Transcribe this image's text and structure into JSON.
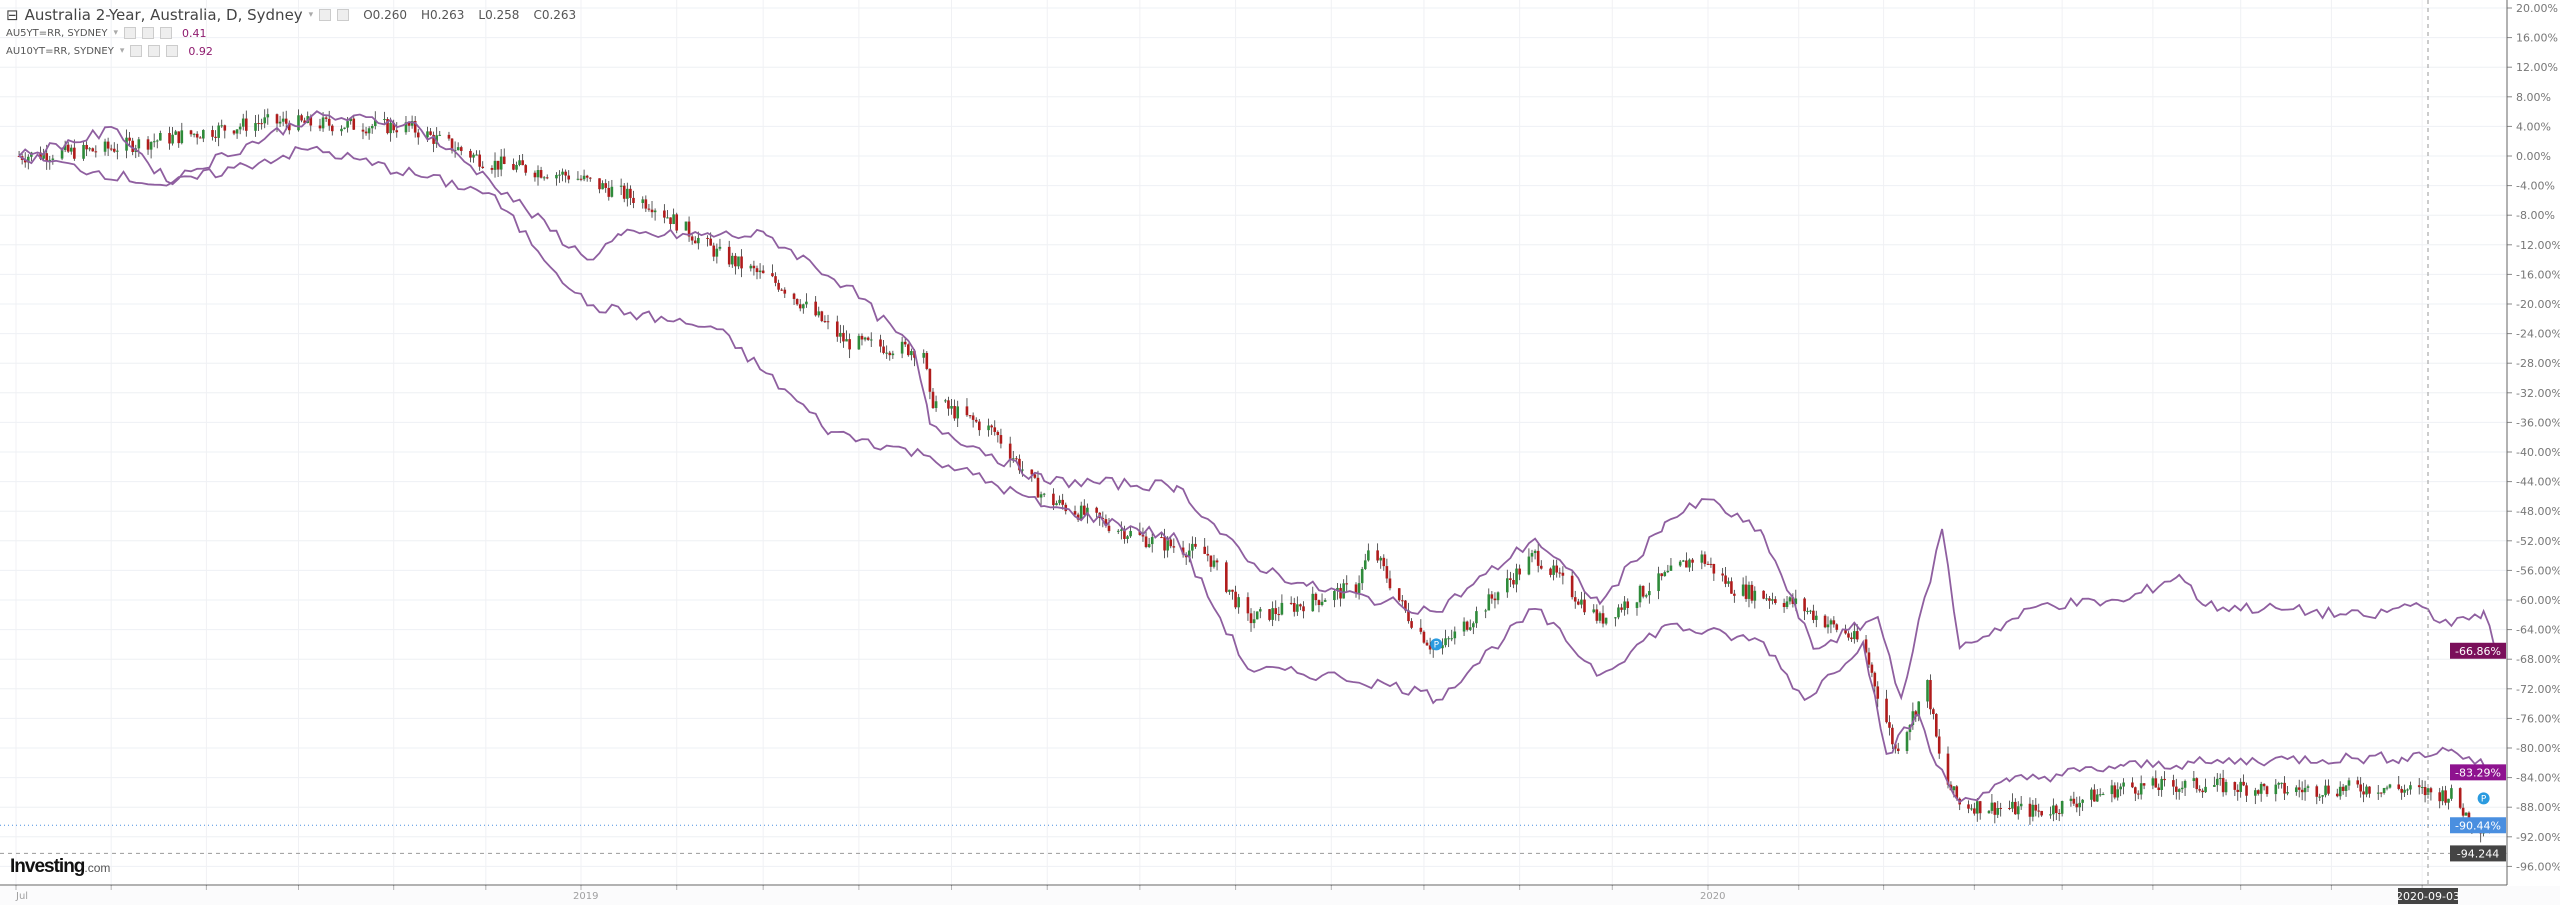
{
  "legend": {
    "main": {
      "title": "Australia 2-Year, Australia, D, Sydney",
      "open": "O0.260",
      "high": "H0.263",
      "low": "L0.258",
      "close": "C0.263"
    },
    "overlays": [
      {
        "label": "AU5YT=RR, SYDNEY",
        "value": "0.41"
      },
      {
        "label": "AU10YT=RR, SYDNEY",
        "value": "0.92"
      }
    ]
  },
  "logo": {
    "brand": "Investing",
    "suffix": ".com"
  },
  "colors": {
    "up": "#2e8b3a",
    "down": "#b01c1c",
    "au5": "#8f5fa0",
    "au10": "#8f5fa0",
    "badge10": "#7a0f5a",
    "badge5": "#8e138f",
    "badgeMain": "#4a8fe0",
    "crosshair": "#444444"
  },
  "chart_data": {
    "type": "line",
    "yaxis": {
      "min": -100,
      "max": 20,
      "step": 4,
      "unit": "%",
      "position": "right"
    },
    "xaxis": {
      "tick_labels": [
        "Jul",
        "2019",
        "2020"
      ],
      "tick_dates": [
        "2018-07-01",
        "2019-01-01",
        "2020-01-01"
      ]
    },
    "grid": true,
    "crosshair": {
      "date": "2020-09-03",
      "value": "-94.244",
      "value_num": -94.244
    },
    "last_value_labels": [
      "-66.86%",
      "-83.29%",
      "-90.44%"
    ],
    "series": [
      {
        "name": "Australia 2-Year",
        "style": "candlestick",
        "last": -90.44,
        "points": [
          [
            "2018-07-02",
            0
          ],
          [
            "2018-07-28",
            0.8
          ],
          [
            "2018-09-19",
            4.6
          ],
          [
            "2018-11-06",
            3.9
          ],
          [
            "2018-12-02",
            -0.9
          ],
          [
            "2018-12-29",
            -2.7
          ],
          [
            "2019-01-24",
            -6.5
          ],
          [
            "2019-02-14",
            -13.1
          ],
          [
            "2019-03-07",
            -17.5
          ],
          [
            "2019-03-28",
            -25.2
          ],
          [
            "2019-04-22",
            -26.3
          ],
          [
            "2019-04-24",
            -32.9
          ],
          [
            "2019-05-15",
            -37.3
          ],
          [
            "2019-05-31",
            -46.2
          ],
          [
            "2019-07-02",
            -51.7
          ],
          [
            "2019-07-23",
            -53.9
          ],
          [
            "2019-08-05",
            -62.7
          ],
          [
            "2019-09-09",
            -58.3
          ],
          [
            "2019-09-14",
            -52.8
          ],
          [
            "2019-09-25",
            -61.6
          ],
          [
            "2019-10-05",
            -67.1
          ],
          [
            "2019-10-16",
            -62.7
          ],
          [
            "2019-11-06",
            -53.9
          ],
          [
            "2019-11-27",
            -62.7
          ],
          [
            "2019-12-29",
            -53.9
          ],
          [
            "2020-01-09",
            -58.3
          ],
          [
            "2020-01-31",
            -60.5
          ],
          [
            "2020-02-23",
            -66
          ],
          [
            "2020-03-05",
            -80.3
          ],
          [
            "2020-03-16",
            -71.5
          ],
          [
            "2020-03-21",
            -83.6
          ],
          [
            "2020-03-27",
            -87.6
          ],
          [
            "2020-04-24",
            -88.6
          ],
          [
            "2020-05-22",
            -85.3
          ],
          [
            "2020-06-19",
            -85.0
          ],
          [
            "2020-07-17",
            -85.7
          ],
          [
            "2020-08-19",
            -85.3
          ],
          [
            "2020-09-11",
            -86.4
          ],
          [
            "2020-09-19",
            -90.6
          ],
          [
            "2020-09-26",
            -90.44
          ]
        ]
      },
      {
        "name": "AU10YT=RR, SYDNEY",
        "style": "line",
        "last": -66.86,
        "points": [
          [
            "2018-07-02",
            0
          ],
          [
            "2018-08-03",
            3.6
          ],
          [
            "2018-08-19",
            -3.4
          ],
          [
            "2018-10-05",
            5.3
          ],
          [
            "2018-11-06",
            4.6
          ],
          [
            "2018-12-02",
            -3.1
          ],
          [
            "2019-01-03",
            -14
          ],
          [
            "2019-01-14",
            -10.7
          ],
          [
            "2019-03-02",
            -10.7
          ],
          [
            "2019-03-28",
            -17.5
          ],
          [
            "2019-04-19",
            -26.3
          ],
          [
            "2019-04-24",
            -36.2
          ],
          [
            "2019-05-31",
            -43.9
          ],
          [
            "2019-07-13",
            -44.6
          ],
          [
            "2019-08-05",
            -54.8
          ],
          [
            "2019-08-24",
            -58.1
          ],
          [
            "2019-10-05",
            -61.6
          ],
          [
            "2019-11-06",
            -51.7
          ],
          [
            "2019-11-27",
            -60.5
          ],
          [
            "2019-12-18",
            -49.5
          ],
          [
            "2020-01-01",
            -46.4
          ],
          [
            "2020-01-20",
            -51.3
          ],
          [
            "2020-02-06",
            -66.6
          ],
          [
            "2020-02-28",
            -62.3
          ],
          [
            "2020-03-07",
            -73.2
          ],
          [
            "2020-03-21",
            -50.4
          ],
          [
            "2020-03-27",
            -66.5
          ],
          [
            "2020-04-24",
            -60.6
          ],
          [
            "2020-05-22",
            -60.2
          ],
          [
            "2020-06-10",
            -56.6
          ],
          [
            "2020-06-19",
            -60.8
          ],
          [
            "2020-07-17",
            -61.3
          ],
          [
            "2020-08-14",
            -62.3
          ],
          [
            "2020-08-30",
            -60.4
          ],
          [
            "2020-09-11",
            -63.5
          ],
          [
            "2020-09-22",
            -61.5
          ],
          [
            "2020-09-26",
            -66.86
          ]
        ]
      },
      {
        "name": "AU5YT=RR, SYDNEY",
        "style": "line",
        "last": -83.29,
        "points": [
          [
            "2018-07-02",
            0
          ],
          [
            "2018-08-19",
            -4.0
          ],
          [
            "2018-10-05",
            1.0
          ],
          [
            "2018-12-02",
            -5.0
          ],
          [
            "2019-01-03",
            -20.2
          ],
          [
            "2019-02-14",
            -23.4
          ],
          [
            "2019-03-23",
            -37.3
          ],
          [
            "2019-04-24",
            -40.6
          ],
          [
            "2019-05-31",
            -47.3
          ],
          [
            "2019-07-13",
            -51.7
          ],
          [
            "2019-08-05",
            -69.3
          ],
          [
            "2019-09-04",
            -70.4
          ],
          [
            "2019-09-30",
            -72.3
          ],
          [
            "2019-10-05",
            -73.5
          ],
          [
            "2019-11-06",
            -61.2
          ],
          [
            "2019-11-27",
            -70.1
          ],
          [
            "2019-12-18",
            -63.4
          ],
          [
            "2020-01-20",
            -65.7
          ],
          [
            "2020-02-03",
            -73.5
          ],
          [
            "2020-02-23",
            -65.7
          ],
          [
            "2020-03-02",
            -80.8
          ],
          [
            "2020-03-13",
            -75.5
          ],
          [
            "2020-03-19",
            -82.3
          ],
          [
            "2020-03-27",
            -87.3
          ],
          [
            "2020-04-13",
            -84.5
          ],
          [
            "2020-05-22",
            -82.4
          ],
          [
            "2020-06-19",
            -82.0
          ],
          [
            "2020-07-17",
            -81.5
          ],
          [
            "2020-08-25",
            -81.3
          ],
          [
            "2020-09-11",
            -80.2
          ],
          [
            "2020-09-26",
            -83.29
          ]
        ]
      }
    ]
  }
}
